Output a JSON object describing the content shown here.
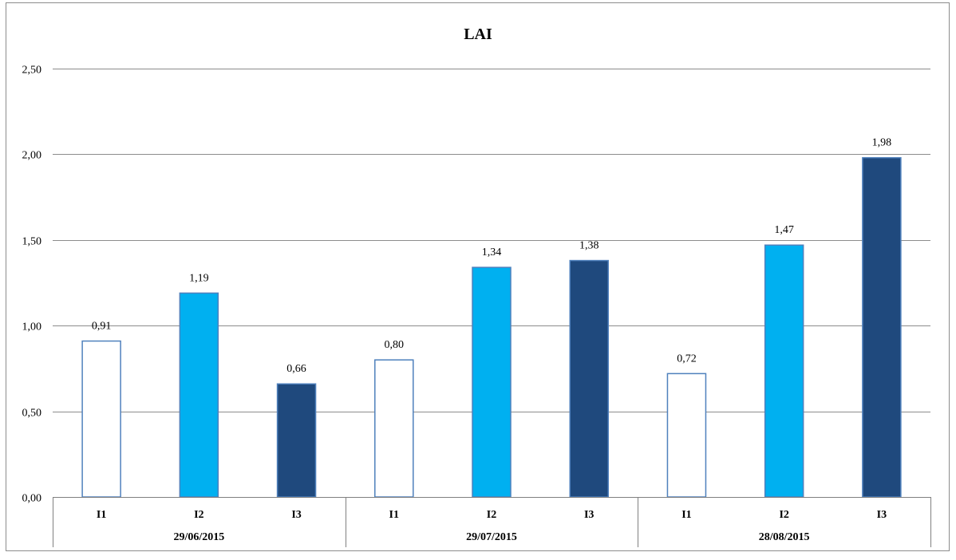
{
  "chart_data": {
    "type": "bar",
    "title": "LAI",
    "xlabel": "",
    "ylabel": "",
    "ylim": [
      0,
      2.5
    ],
    "yticks": [
      "0,00",
      "0,50",
      "1,00",
      "1,50",
      "2,00",
      "2,50"
    ],
    "ytick_values": [
      0,
      0.5,
      1.0,
      1.5,
      2.0,
      2.5
    ],
    "grid": true,
    "legend": "none",
    "groups": [
      {
        "label": "29/06/2015",
        "bars": [
          {
            "category": "I1",
            "value": 0.91,
            "label": "0,91",
            "fill": "#FFFFFF"
          },
          {
            "category": "I2",
            "value": 1.19,
            "label": "1,19",
            "fill": "#00B0F0"
          },
          {
            "category": "I3",
            "value": 0.66,
            "label": "0,66",
            "fill": "#1F497D"
          }
        ]
      },
      {
        "label": "29/07/2015",
        "bars": [
          {
            "category": "I1",
            "value": 0.8,
            "label": "0,80",
            "fill": "#FFFFFF"
          },
          {
            "category": "I2",
            "value": 1.34,
            "label": "1,34",
            "fill": "#00B0F0"
          },
          {
            "category": "I3",
            "value": 1.38,
            "label": "1,38",
            "fill": "#1F497D"
          }
        ]
      },
      {
        "label": "28/08/2015",
        "bars": [
          {
            "category": "I1",
            "value": 0.72,
            "label": "0,72",
            "fill": "#FFFFFF"
          },
          {
            "category": "I2",
            "value": 1.47,
            "label": "1,47",
            "fill": "#00B0F0"
          },
          {
            "category": "I3",
            "value": 1.98,
            "label": "1,98",
            "fill": "#1F497D"
          }
        ]
      }
    ]
  },
  "colors": {
    "bar_outline": "#4F81BD",
    "gridline": "#8C8C8C",
    "frame": "#8C8C8C"
  }
}
